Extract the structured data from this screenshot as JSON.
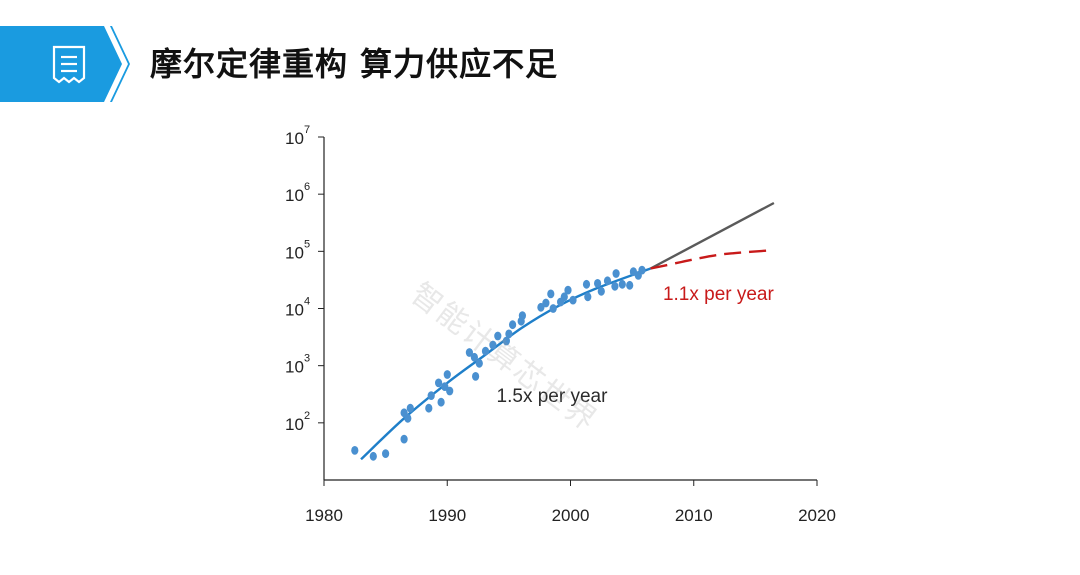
{
  "header": {
    "title": "摩尔定律重构 算力供应不足",
    "icon": "document-list-icon",
    "accent_color": "#1a9be0"
  },
  "watermark": "智能计算芯世界",
  "chart_data": {
    "type": "scatter",
    "title": "",
    "xlabel": "",
    "ylabel": "",
    "y_scale": "log",
    "xlim": [
      1980,
      2020
    ],
    "ylim": [
      10,
      10000000
    ],
    "x_ticks": [
      1980,
      1990,
      2000,
      2010,
      2020
    ],
    "y_ticks": [
      {
        "value": 100,
        "base": "10",
        "exp": "2"
      },
      {
        "value": 1000,
        "base": "10",
        "exp": "3"
      },
      {
        "value": 10000,
        "base": "10",
        "exp": "4"
      },
      {
        "value": 100000,
        "base": "10",
        "exp": "5"
      },
      {
        "value": 1000000,
        "base": "10",
        "exp": "6"
      },
      {
        "value": 10000000,
        "base": "10",
        "exp": "7"
      }
    ],
    "grid": false,
    "colors": {
      "points": "#4a90d0",
      "fit": "#1f7fc9",
      "projection": "#5a5a5a",
      "slowdown": "#c81a1a"
    },
    "points": [
      [
        1982.5,
        33
      ],
      [
        1984,
        26
      ],
      [
        1985,
        29
      ],
      [
        1986.5,
        52
      ],
      [
        1986.5,
        150
      ],
      [
        1986.8,
        120
      ],
      [
        1987,
        180
      ],
      [
        1988.5,
        180
      ],
      [
        1988.7,
        300
      ],
      [
        1989.3,
        500
      ],
      [
        1989.5,
        230
      ],
      [
        1989.8,
        430
      ],
      [
        1990,
        700
      ],
      [
        1990.2,
        360
      ],
      [
        1991.8,
        1700
      ],
      [
        1992.2,
        1400
      ],
      [
        1992.3,
        650
      ],
      [
        1992.6,
        1100
      ],
      [
        1993.1,
        1800
      ],
      [
        1993.7,
        2300
      ],
      [
        1994.1,
        3300
      ],
      [
        1994.8,
        2700
      ],
      [
        1995,
        3600
      ],
      [
        1995.3,
        5200
      ],
      [
        1996,
        6000
      ],
      [
        1996.1,
        7500
      ],
      [
        1997.6,
        10500
      ],
      [
        1998,
        12500
      ],
      [
        1998.4,
        18000
      ],
      [
        1998.6,
        10000
      ],
      [
        1999.2,
        13000
      ],
      [
        1999.5,
        16000
      ],
      [
        1999.8,
        21000
      ],
      [
        2000.2,
        14000
      ],
      [
        2001.3,
        26500
      ],
      [
        2001.4,
        16000
      ],
      [
        2002.2,
        27500
      ],
      [
        2002.5,
        20000
      ],
      [
        2003,
        30500
      ],
      [
        2003.6,
        24500
      ],
      [
        2003.7,
        41000
      ],
      [
        2004.2,
        26500
      ],
      [
        2004.8,
        25500
      ],
      [
        2005.1,
        44000
      ],
      [
        2005.5,
        38000
      ],
      [
        2005.8,
        47000
      ]
    ],
    "fit_curve": [
      [
        1983,
        23
      ],
      [
        1986.5,
        120
      ],
      [
        1990,
        500
      ],
      [
        1993,
        1500
      ],
      [
        1996,
        4500
      ],
      [
        1999,
        11000
      ],
      [
        2002,
        22000
      ],
      [
        2006.5,
        50000
      ]
    ],
    "projection_line": [
      [
        2006.5,
        50000
      ],
      [
        2016.5,
        700000
      ]
    ],
    "slowdown_curve": [
      [
        2006.5,
        50000
      ],
      [
        2009,
        65000
      ],
      [
        2011,
        80000
      ],
      [
        2013,
        92000
      ],
      [
        2016.5,
        105000
      ]
    ],
    "annotations": [
      {
        "text": "1.5x per year",
        "x": 1994,
        "y": 230,
        "color": "#2b2b2b"
      },
      {
        "text": "1.1x per year",
        "x": 2007.5,
        "y": 14000,
        "color": "#c81a1a"
      }
    ]
  }
}
